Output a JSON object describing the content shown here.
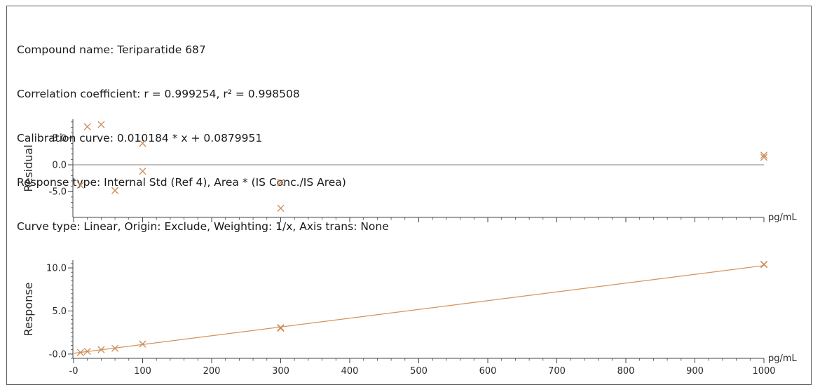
{
  "header": {
    "compound": "Compound name: Teriparatide 687",
    "correlation": "Correlation coefficient: r = 0.999254, r² = 0.998508",
    "calibration": "Calibration curve: 0.010184 * x + 0.0879951",
    "response_type": "Response type: Internal Std (Ref 4), Area * (IS Conc./IS Area)",
    "curve_type": "Curve type: Linear, Origin: Exclude, Weighting: 1/x, Axis trans: None"
  },
  "colors": {
    "marker": "#c98a58",
    "line": "#d4935c",
    "axis": "#444444",
    "zero_line": "#808080"
  },
  "chart_data": [
    {
      "type": "scatter",
      "name": "residual-plot",
      "ylabel": "Residual",
      "xunit": "pg/mL",
      "xlim": [
        -1,
        1000
      ],
      "ylim": [
        -8.5,
        8.5
      ],
      "yticks": [
        {
          "v": 5,
          "label": "5.0"
        },
        {
          "v": 0,
          "label": "0.0"
        },
        {
          "v": -5,
          "label": "-5.0"
        }
      ],
      "zero_line": true,
      "points": [
        {
          "x": 10,
          "y": -3.8
        },
        {
          "x": 20,
          "y": 7.1
        },
        {
          "x": 40,
          "y": 7.5
        },
        {
          "x": 60,
          "y": -4.8
        },
        {
          "x": 100,
          "y": 4.0
        },
        {
          "x": 100,
          "y": -1.2
        },
        {
          "x": 300,
          "y": -3.3
        },
        {
          "x": 300,
          "y": -8.1
        },
        {
          "x": 1000,
          "y": 1.8
        },
        {
          "x": 1000,
          "y": 1.4
        }
      ]
    },
    {
      "type": "scatter",
      "name": "response-plot",
      "ylabel": "Response",
      "xunit": "pg/mL",
      "xlim": [
        -1,
        1000
      ],
      "ylim": [
        -0.5,
        10.9
      ],
      "xticks": [
        {
          "v": 0,
          "label": "-0"
        },
        {
          "v": 100,
          "label": "100"
        },
        {
          "v": 200,
          "label": "200"
        },
        {
          "v": 300,
          "label": "300"
        },
        {
          "v": 400,
          "label": "400"
        },
        {
          "v": 500,
          "label": "500"
        },
        {
          "v": 600,
          "label": "600"
        },
        {
          "v": 700,
          "label": "700"
        },
        {
          "v": 800,
          "label": "800"
        },
        {
          "v": 900,
          "label": "900"
        },
        {
          "v": 1000,
          "label": "1000"
        }
      ],
      "yticks": [
        {
          "v": 10,
          "label": "10.0"
        },
        {
          "v": 5,
          "label": "5.0"
        },
        {
          "v": 0,
          "label": "-0.0"
        }
      ],
      "fit_line": {
        "slope": 0.010184,
        "intercept": 0.0879951,
        "x_range": [
          0,
          1000
        ]
      },
      "points": [
        {
          "x": 10,
          "y": 0.18
        },
        {
          "x": 20,
          "y": 0.31
        },
        {
          "x": 40,
          "y": 0.51
        },
        {
          "x": 60,
          "y": 0.67
        },
        {
          "x": 100,
          "y": 1.16
        },
        {
          "x": 300,
          "y": 3.0
        },
        {
          "x": 300,
          "y": 3.07
        },
        {
          "x": 1000,
          "y": 10.43
        },
        {
          "x": 1000,
          "y": 10.39
        }
      ]
    }
  ]
}
